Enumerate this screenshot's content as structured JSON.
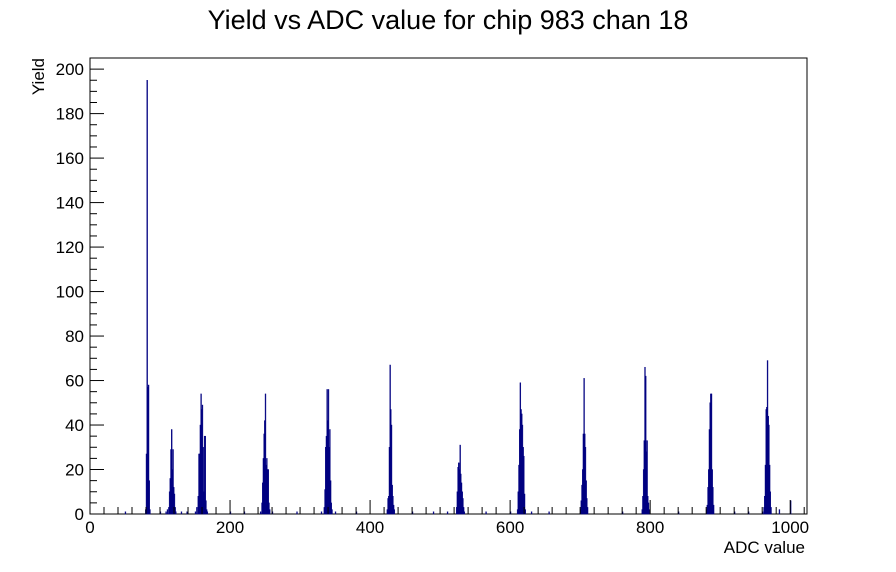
{
  "chart_data": {
    "type": "histogram",
    "title": "Yield vs ADC value for chip 983 chan 18",
    "xlabel": "ADC value",
    "ylabel": "Yield",
    "xlim": [
      0,
      1024
    ],
    "ylim": [
      0,
      205
    ],
    "x_ticks": [
      0,
      200,
      400,
      600,
      800,
      1000
    ],
    "y_ticks": [
      0,
      20,
      40,
      60,
      80,
      100,
      120,
      140,
      160,
      180,
      200
    ],
    "grid": false,
    "legend": "none",
    "bin_width": 1,
    "series": [
      {
        "color": "#000080",
        "points": [
          [
            50,
            1
          ],
          [
            79,
            2
          ],
          [
            80,
            27
          ],
          [
            81,
            195
          ],
          [
            82,
            57
          ],
          [
            83,
            58
          ],
          [
            84,
            15
          ],
          [
            85,
            2
          ],
          [
            100,
            1
          ],
          [
            108,
            1
          ],
          [
            110,
            2
          ],
          [
            112,
            3
          ],
          [
            113,
            10
          ],
          [
            114,
            16
          ],
          [
            115,
            29
          ],
          [
            116,
            38
          ],
          [
            117,
            20
          ],
          [
            118,
            29
          ],
          [
            119,
            12
          ],
          [
            120,
            9
          ],
          [
            121,
            3
          ],
          [
            122,
            1
          ],
          [
            130,
            1
          ],
          [
            138,
            1
          ],
          [
            150,
            1
          ],
          [
            152,
            3
          ],
          [
            154,
            8
          ],
          [
            155,
            27
          ],
          [
            156,
            27
          ],
          [
            157,
            40
          ],
          [
            158,
            54
          ],
          [
            159,
            47
          ],
          [
            160,
            49
          ],
          [
            161,
            30
          ],
          [
            162,
            10
          ],
          [
            163,
            35
          ],
          [
            164,
            35
          ],
          [
            165,
            6
          ],
          [
            166,
            2
          ],
          [
            167,
            1
          ],
          [
            200,
            1
          ],
          [
            220,
            1
          ],
          [
            243,
            1
          ],
          [
            245,
            5
          ],
          [
            246,
            14
          ],
          [
            247,
            25
          ],
          [
            248,
            36
          ],
          [
            249,
            42
          ],
          [
            250,
            54
          ],
          [
            251,
            22
          ],
          [
            252,
            25
          ],
          [
            253,
            20
          ],
          [
            254,
            20
          ],
          [
            255,
            5
          ],
          [
            256,
            2
          ],
          [
            260,
            1
          ],
          [
            295,
            1
          ],
          [
            330,
            1
          ],
          [
            334,
            3
          ],
          [
            335,
            11
          ],
          [
            336,
            30
          ],
          [
            337,
            35
          ],
          [
            338,
            56
          ],
          [
            339,
            42
          ],
          [
            340,
            56
          ],
          [
            341,
            30
          ],
          [
            342,
            38
          ],
          [
            343,
            15
          ],
          [
            344,
            5
          ],
          [
            345,
            2
          ],
          [
            350,
            1
          ],
          [
            380,
            1
          ],
          [
            424,
            2
          ],
          [
            425,
            7
          ],
          [
            426,
            8
          ],
          [
            427,
            30
          ],
          [
            428,
            67
          ],
          [
            429,
            47
          ],
          [
            430,
            40
          ],
          [
            431,
            13
          ],
          [
            432,
            8
          ],
          [
            433,
            4
          ],
          [
            434,
            2
          ],
          [
            460,
            1
          ],
          [
            490,
            1
          ],
          [
            510,
            1
          ],
          [
            523,
            3
          ],
          [
            524,
            10
          ],
          [
            525,
            21
          ],
          [
            526,
            23
          ],
          [
            527,
            20
          ],
          [
            528,
            31
          ],
          [
            529,
            18
          ],
          [
            530,
            14
          ],
          [
            531,
            10
          ],
          [
            532,
            7
          ],
          [
            533,
            3
          ],
          [
            534,
            1
          ],
          [
            565,
            1
          ],
          [
            600,
            1
          ],
          [
            610,
            2
          ],
          [
            611,
            10
          ],
          [
            612,
            22
          ],
          [
            613,
            38
          ],
          [
            614,
            59
          ],
          [
            615,
            47
          ],
          [
            616,
            45
          ],
          [
            617,
            40
          ],
          [
            618,
            30
          ],
          [
            619,
            26
          ],
          [
            620,
            9
          ],
          [
            621,
            2
          ],
          [
            630,
            1
          ],
          [
            655,
            1
          ],
          [
            700,
            2
          ],
          [
            701,
            6
          ],
          [
            702,
            13
          ],
          [
            703,
            20
          ],
          [
            704,
            36
          ],
          [
            705,
            61
          ],
          [
            706,
            36
          ],
          [
            707,
            30
          ],
          [
            708,
            15
          ],
          [
            709,
            7
          ],
          [
            710,
            3
          ],
          [
            760,
            1
          ],
          [
            788,
            2
          ],
          [
            789,
            8
          ],
          [
            790,
            20
          ],
          [
            791,
            33
          ],
          [
            792,
            66
          ],
          [
            793,
            62
          ],
          [
            794,
            28
          ],
          [
            795,
            33
          ],
          [
            796,
            8
          ],
          [
            797,
            5
          ],
          [
            798,
            2
          ],
          [
            840,
            1
          ],
          [
            880,
            2
          ],
          [
            881,
            4
          ],
          [
            882,
            12
          ],
          [
            883,
            20
          ],
          [
            884,
            38
          ],
          [
            885,
            50
          ],
          [
            886,
            54
          ],
          [
            887,
            54
          ],
          [
            888,
            20
          ],
          [
            889,
            12
          ],
          [
            890,
            4
          ],
          [
            920,
            1
          ],
          [
            940,
            1
          ],
          [
            960,
            1
          ],
          [
            962,
            3
          ],
          [
            963,
            8
          ],
          [
            964,
            22
          ],
          [
            965,
            47
          ],
          [
            966,
            48
          ],
          [
            967,
            69
          ],
          [
            968,
            44
          ],
          [
            969,
            40
          ],
          [
            970,
            22
          ],
          [
            971,
            10
          ],
          [
            972,
            3
          ],
          [
            984,
            2
          ],
          [
            1000,
            6
          ]
        ]
      }
    ]
  }
}
